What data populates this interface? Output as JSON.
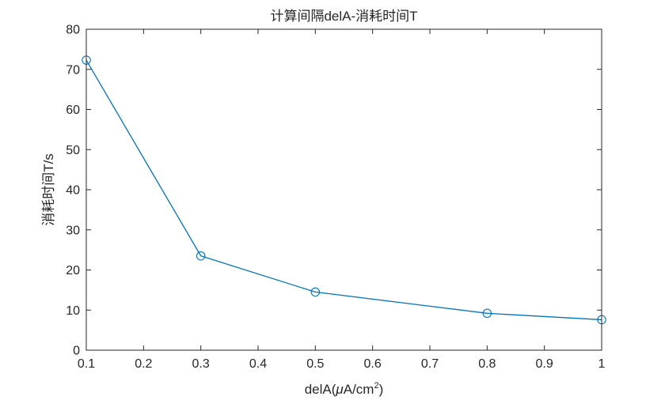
{
  "chart_data": {
    "type": "line",
    "title": "计算间隔delA-消耗时间T",
    "xlabel": "delA(",
    "xlabel_mu": "μ",
    "xlabel_unit": "A/cm",
    "xlabel_sup": "2",
    "xlabel_close": ")",
    "ylabel": "消耗时间T/s",
    "xlim": [
      0.1,
      1
    ],
    "ylim": [
      0,
      80
    ],
    "xticks": [
      "0.1",
      "0.2",
      "0.3",
      "0.4",
      "0.5",
      "0.6",
      "0.7",
      "0.8",
      "0.9",
      "1"
    ],
    "yticks": [
      "0",
      "10",
      "20",
      "30",
      "40",
      "50",
      "60",
      "70",
      "80"
    ],
    "grid": false,
    "series": [
      {
        "color": "#0072BD",
        "marker": "circle",
        "x": [
          0.1,
          0.3,
          0.5,
          0.8,
          1
        ],
        "y": [
          72.3,
          23.5,
          14.5,
          9.2,
          7.6
        ]
      }
    ]
  }
}
